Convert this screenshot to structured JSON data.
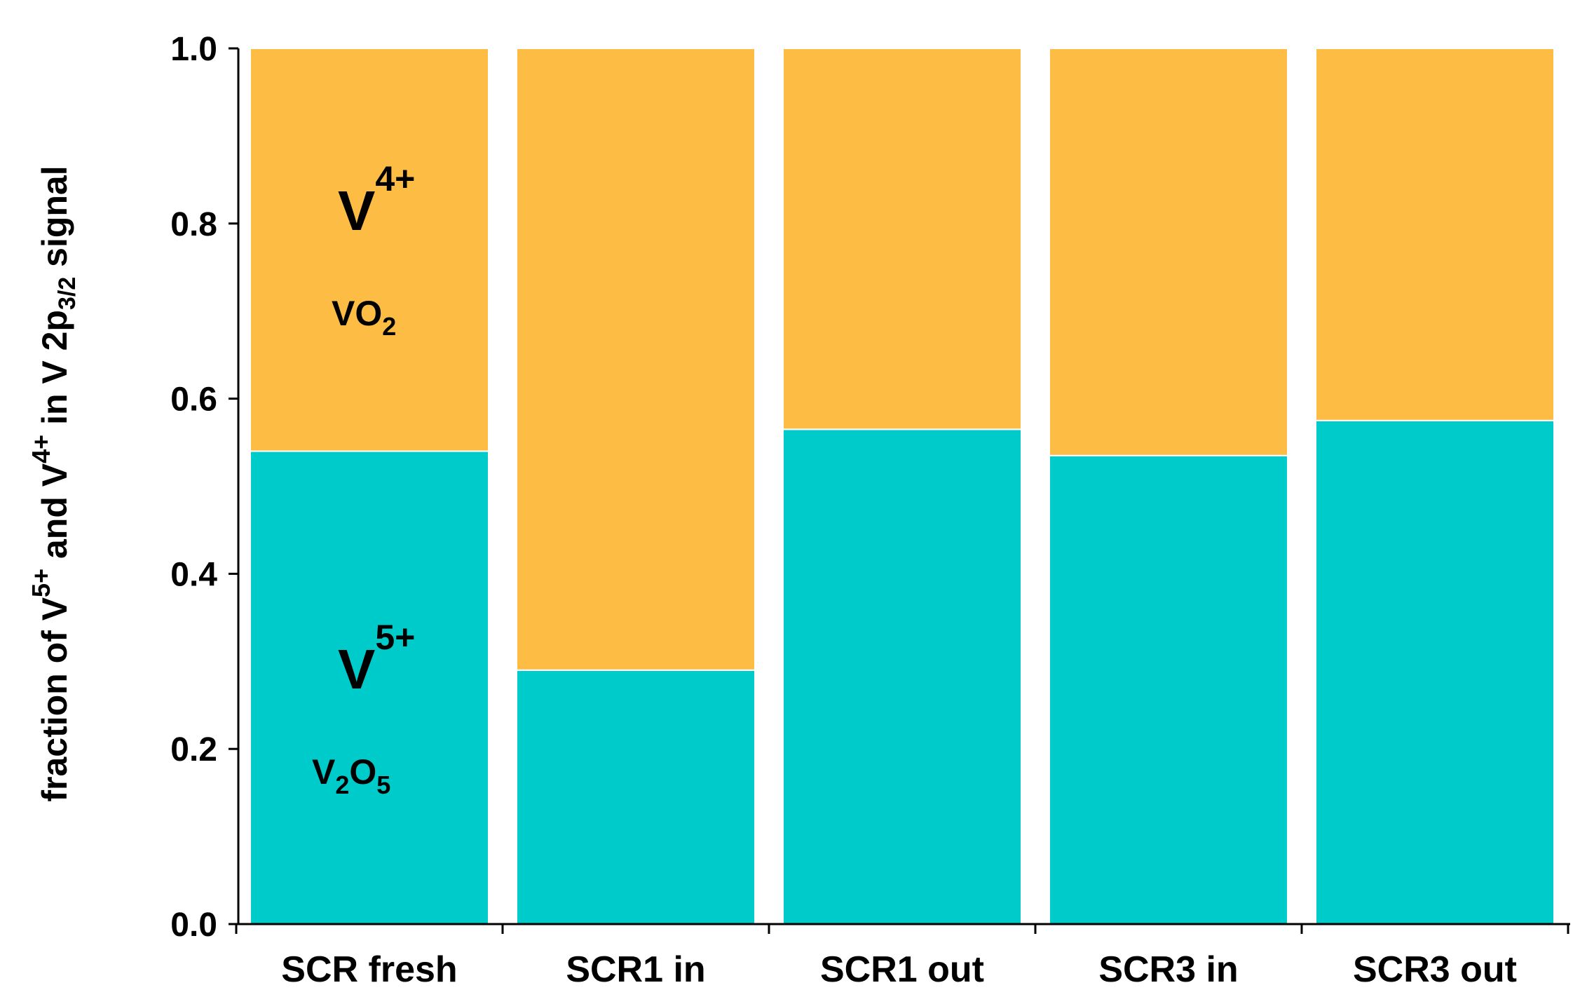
{
  "colors": {
    "v5_series": "#00cbcb",
    "v4_series": "#fdbd44",
    "bar_outline": "#ffffff",
    "axis": "#000000"
  },
  "chart_data": {
    "type": "bar",
    "stacked": true,
    "title": "",
    "xlabel": "",
    "ylabel": "fraction of V5+ and V4+ in V 2p3/2 signal",
    "ylabel_parts": {
      "pre": "fraction of V",
      "sup1": "5+",
      "mid": " and V",
      "sup2": "4+",
      "post": " in V 2p",
      "sub": "3/2",
      "end": " signal"
    },
    "categories": [
      "SCR fresh",
      "SCR1 in",
      "SCR1 out",
      "SCR3 in",
      "SCR3 out"
    ],
    "series": [
      {
        "name": "V5+ (V2O5)",
        "values": [
          0.54,
          0.29,
          0.565,
          0.535,
          0.575
        ]
      },
      {
        "name": "V4+ (VO2)",
        "values": [
          0.46,
          0.71,
          0.435,
          0.465,
          0.425
        ]
      }
    ],
    "ylim": [
      0,
      1.0
    ],
    "yticks": [
      "0.0",
      "0.2",
      "0.4",
      "0.6",
      "0.8",
      "1.0"
    ],
    "legend": "none",
    "grid": false,
    "annotations": {
      "v4_symbol": "V",
      "v4_charge": "4+",
      "vo2_base": "VO",
      "vo2_sub": "2",
      "v5_symbol": "V",
      "v5_charge": "5+",
      "v2o5_v": "V",
      "v2o5_sub1": "2",
      "v2o5_o": "O",
      "v2o5_sub2": "5"
    }
  }
}
